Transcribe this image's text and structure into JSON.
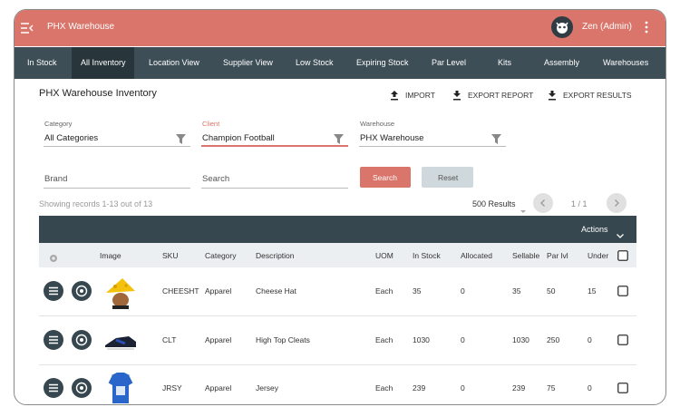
{
  "header": {
    "title": "PHX Warehouse",
    "user": "Zen (Admin)"
  },
  "tabs": [
    "In Stock",
    "All Inventory",
    "Location View",
    "Supplier View",
    "Low Stock",
    "Expiring Stock",
    "Par Level",
    "Kits",
    "Assembly",
    "Warehouses"
  ],
  "page_title": "PHX Warehouse Inventory",
  "actions": [
    "IMPORT",
    "EXPORT REPORT",
    "EXPORT RESULTS"
  ],
  "filters": [
    {
      "label": "Category",
      "value": "All Categories"
    },
    {
      "label": "Client",
      "value": "Champion Football"
    },
    {
      "label": "Warehouse",
      "value": "PHX Warehouse"
    }
  ],
  "search_fields": [
    "Brand",
    "Search"
  ],
  "buttons": [
    "Search",
    "Reset"
  ],
  "records_text": "Showing records 1-13 out of 13",
  "page_size": "500 Results",
  "pagination": "1 / 1",
  "table": {
    "actions_label": "Actions",
    "columns": [
      "Image",
      "SKU",
      "Category",
      "Description",
      "UOM",
      "In Stock",
      "Allocated",
      "Sellable",
      "Par lvl",
      "Under"
    ],
    "rows": [
      [
        "CHEESHT",
        "Apparel",
        "Cheese Hat",
        "Each",
        35,
        0,
        35,
        50,
        15
      ],
      [
        "CLT",
        "Apparel",
        "High Top Cleats",
        "Each",
        1030,
        0,
        1030,
        250,
        0
      ],
      [
        "JRSY",
        "Apparel",
        "Jersey",
        "Each",
        239,
        0,
        239,
        75,
        0
      ]
    ]
  }
}
